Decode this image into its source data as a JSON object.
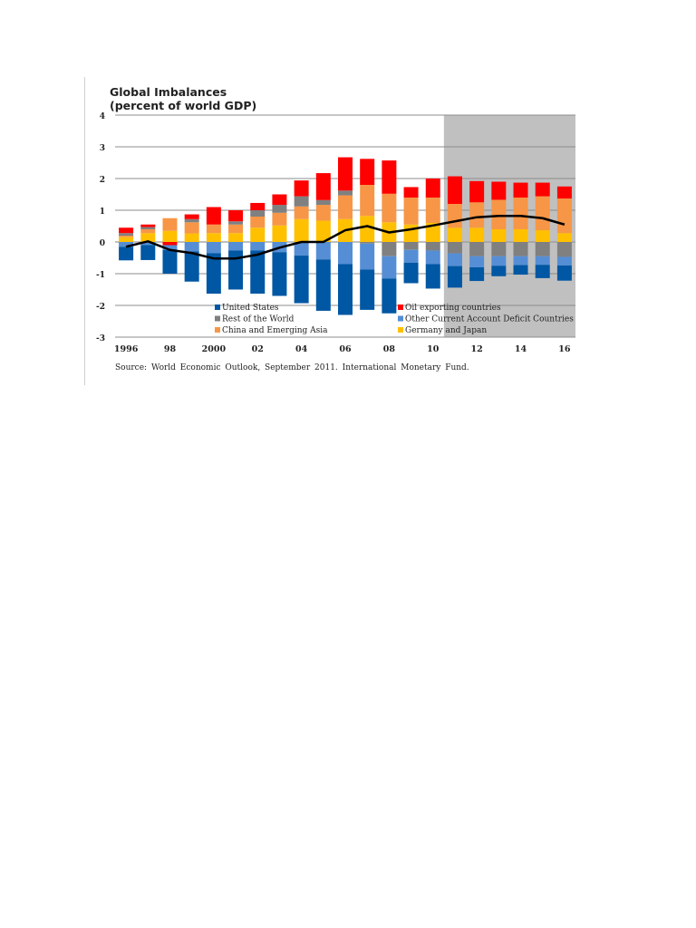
{
  "chart_data": {
    "type": "bar",
    "stacked": true,
    "title": "Global Imbalances",
    "subtitle": "(percent of world GDP)",
    "source": "Source:  World Economic Outlook,  September  2011. International  Monetary  Fund.",
    "categories": [
      1996,
      1997,
      1998,
      1999,
      2000,
      2001,
      2002,
      2003,
      2004,
      2005,
      2006,
      2007,
      2008,
      2009,
      2010,
      2011,
      2012,
      2013,
      2014,
      2015,
      2016
    ],
    "x_tick_labels": [
      "1996",
      "98",
      "2000",
      "02",
      "04",
      "06",
      "08",
      "10",
      "12",
      "14",
      "16"
    ],
    "y_tick_labels": [
      "4",
      "3",
      "2",
      "1",
      "0",
      "-1",
      "-2",
      "-3"
    ],
    "ylim": [
      -3,
      4
    ],
    "grid": true,
    "shaded_projection_from": 2011,
    "legend_position": "bottom-inside",
    "series": [
      {
        "name": "Germany and Japan",
        "color": "#ffc000",
        "values": [
          0.15,
          0.28,
          0.35,
          0.27,
          0.28,
          0.28,
          0.45,
          0.52,
          0.72,
          0.67,
          0.72,
          0.82,
          0.62,
          0.55,
          0.6,
          0.45,
          0.45,
          0.4,
          0.4,
          0.37,
          0.28
        ]
      },
      {
        "name": "China and  Emerging Asia",
        "color": "#f79646",
        "values": [
          0.05,
          0.12,
          0.4,
          0.35,
          0.27,
          0.27,
          0.35,
          0.4,
          0.4,
          0.5,
          0.75,
          0.98,
          0.9,
          0.85,
          0.8,
          0.75,
          0.8,
          0.93,
          1.0,
          1.07,
          1.09
        ]
      },
      {
        "name": "Rest of the World",
        "color": "#808080",
        "values": [
          0.08,
          0.07,
          0,
          0.1,
          0,
          0.1,
          0.2,
          0.25,
          0.32,
          0.15,
          0.15,
          -0.05,
          -0.45,
          -0.25,
          -0.27,
          -0.36,
          -0.45,
          -0.45,
          -0.45,
          -0.45,
          -0.47
        ]
      },
      {
        "name": "Oil exporting countries",
        "color": "#ff0000",
        "values": [
          0.17,
          0.08,
          -0.1,
          0.15,
          0.55,
          0.35,
          0.23,
          0.33,
          0.5,
          0.85,
          1.05,
          0.82,
          1.05,
          0.33,
          0.6,
          0.87,
          0.67,
          0.57,
          0.47,
          0.43,
          0.38
        ]
      },
      {
        "name": "Other Current  Account Deficit Countries",
        "color": "#558ed5",
        "values": [
          -0.15,
          -0.1,
          -0.15,
          -0.3,
          -0.35,
          -0.27,
          -0.27,
          -0.32,
          -0.43,
          -0.55,
          -0.7,
          -0.82,
          -0.7,
          -0.4,
          -0.43,
          -0.4,
          -0.35,
          -0.3,
          -0.28,
          -0.27,
          -0.27
        ]
      },
      {
        "name": "United States",
        "color": "#0057a3",
        "values": [
          -0.43,
          -0.47,
          -0.75,
          -0.95,
          -1.28,
          -1.23,
          -1.36,
          -1.38,
          -1.5,
          -1.62,
          -1.6,
          -1.27,
          -1.1,
          -0.65,
          -0.77,
          -0.68,
          -0.43,
          -0.33,
          -0.3,
          -0.42,
          -0.48
        ]
      }
    ],
    "line": {
      "color": "#000000",
      "values": [
        -0.15,
        0.02,
        -0.25,
        -0.35,
        -0.52,
        -0.52,
        -0.4,
        -0.18,
        0,
        0,
        0.37,
        0.5,
        0.3,
        0.4,
        0.52,
        0.65,
        0.78,
        0.82,
        0.82,
        0.75,
        0.55
      ]
    },
    "legend_order": [
      "United States",
      "Oil exporting countries",
      "Rest of the World",
      "Other Current  Account Deficit Countries",
      "China and  Emerging Asia",
      "Germany and Japan"
    ]
  }
}
